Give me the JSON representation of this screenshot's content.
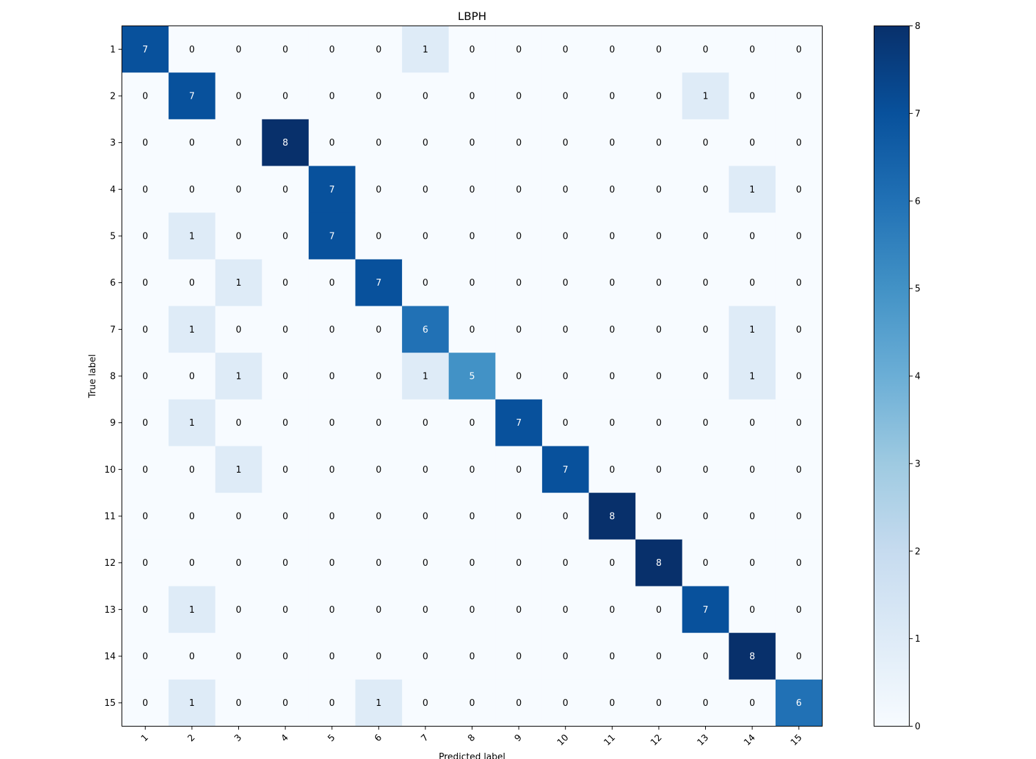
{
  "chart_data": {
    "type": "heatmap",
    "title": "LBPH",
    "xlabel": "Predicted label",
    "ylabel": "True label",
    "x_categories": [
      "1",
      "2",
      "3",
      "4",
      "5",
      "6",
      "7",
      "8",
      "9",
      "10",
      "11",
      "12",
      "13",
      "14",
      "15"
    ],
    "y_categories": [
      "1",
      "2",
      "3",
      "4",
      "5",
      "6",
      "7",
      "8",
      "9",
      "10",
      "11",
      "12",
      "13",
      "14",
      "15"
    ],
    "matrix": [
      [
        7,
        0,
        0,
        0,
        0,
        0,
        1,
        0,
        0,
        0,
        0,
        0,
        0,
        0,
        0
      ],
      [
        0,
        7,
        0,
        0,
        0,
        0,
        0,
        0,
        0,
        0,
        0,
        0,
        1,
        0,
        0
      ],
      [
        0,
        0,
        0,
        8,
        0,
        0,
        0,
        0,
        0,
        0,
        0,
        0,
        0,
        0,
        0
      ],
      [
        0,
        0,
        0,
        0,
        7,
        0,
        0,
        0,
        0,
        0,
        0,
        0,
        0,
        1,
        0
      ],
      [
        0,
        1,
        0,
        0,
        7,
        0,
        0,
        0,
        0,
        0,
        0,
        0,
        0,
        0,
        0
      ],
      [
        0,
        0,
        1,
        0,
        0,
        7,
        0,
        0,
        0,
        0,
        0,
        0,
        0,
        0,
        0
      ],
      [
        0,
        1,
        0,
        0,
        0,
        0,
        6,
        0,
        0,
        0,
        0,
        0,
        0,
        1,
        0
      ],
      [
        0,
        0,
        1,
        0,
        0,
        0,
        1,
        5,
        0,
        0,
        0,
        0,
        0,
        1,
        0
      ],
      [
        0,
        1,
        0,
        0,
        0,
        0,
        0,
        0,
        7,
        0,
        0,
        0,
        0,
        0,
        0
      ],
      [
        0,
        0,
        1,
        0,
        0,
        0,
        0,
        0,
        0,
        7,
        0,
        0,
        0,
        0,
        0
      ],
      [
        0,
        0,
        0,
        0,
        0,
        0,
        0,
        0,
        0,
        0,
        8,
        0,
        0,
        0,
        0
      ],
      [
        0,
        0,
        0,
        0,
        0,
        0,
        0,
        0,
        0,
        0,
        0,
        8,
        0,
        0,
        0
      ],
      [
        0,
        1,
        0,
        0,
        0,
        0,
        0,
        0,
        0,
        0,
        0,
        0,
        7,
        0,
        0
      ],
      [
        0,
        0,
        0,
        0,
        0,
        0,
        0,
        0,
        0,
        0,
        0,
        0,
        0,
        8,
        0
      ],
      [
        0,
        1,
        0,
        0,
        0,
        1,
        0,
        0,
        0,
        0,
        0,
        0,
        0,
        0,
        6
      ]
    ],
    "colormap": "Blues",
    "colorbar": {
      "min": 0,
      "max": 8,
      "ticks": [
        0,
        1,
        2,
        3,
        4,
        5,
        6,
        7,
        8
      ],
      "placement": "right"
    },
    "x_tick_rotation": 45,
    "grid": false
  }
}
